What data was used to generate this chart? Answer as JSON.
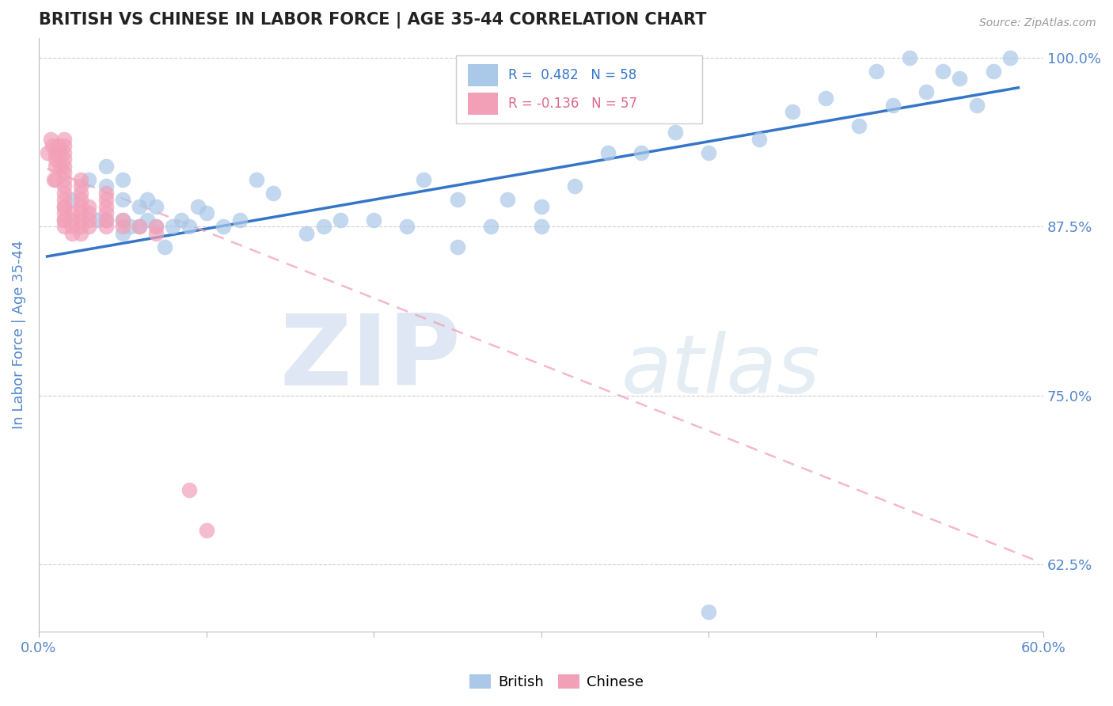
{
  "title": "BRITISH VS CHINESE IN LABOR FORCE | AGE 35-44 CORRELATION CHART",
  "source_text": "Source: ZipAtlas.com",
  "ylabel": "In Labor Force | Age 35-44",
  "xlim": [
    0.0,
    0.6
  ],
  "ylim": [
    0.575,
    1.015
  ],
  "xticks": [
    0.0,
    0.1,
    0.2,
    0.3,
    0.4,
    0.5,
    0.6
  ],
  "yticks": [
    0.625,
    0.75,
    0.875,
    1.0
  ],
  "yticklabels": [
    "62.5%",
    "75.0%",
    "87.5%",
    "100.0%"
  ],
  "british_R": 0.482,
  "british_N": 58,
  "chinese_R": -0.136,
  "chinese_N": 57,
  "british_color": "#aac8e8",
  "chinese_color": "#f2a0b8",
  "british_line_color": "#3575c8",
  "chinese_line_color": "#f2a0b8",
  "grid_color": "#d0d0d0",
  "axis_color": "#bbbbbb",
  "label_color": "#5588cc",
  "title_color": "#222222",
  "watermark": "ZIPatlas",
  "british_x": [
    0.02,
    0.03,
    0.035,
    0.04,
    0.04,
    0.04,
    0.05,
    0.05,
    0.05,
    0.05,
    0.055,
    0.06,
    0.06,
    0.065,
    0.065,
    0.07,
    0.07,
    0.075,
    0.08,
    0.085,
    0.09,
    0.095,
    0.1,
    0.11,
    0.12,
    0.13,
    0.14,
    0.16,
    0.17,
    0.18,
    0.2,
    0.22,
    0.23,
    0.25,
    0.25,
    0.27,
    0.28,
    0.3,
    0.3,
    0.32,
    0.34,
    0.36,
    0.38,
    0.4,
    0.43,
    0.45,
    0.47,
    0.49,
    0.5,
    0.51,
    0.52,
    0.53,
    0.54,
    0.55,
    0.56,
    0.57,
    0.58,
    0.4
  ],
  "british_y": [
    0.895,
    0.91,
    0.88,
    0.88,
    0.905,
    0.92,
    0.87,
    0.88,
    0.895,
    0.91,
    0.875,
    0.875,
    0.89,
    0.88,
    0.895,
    0.875,
    0.89,
    0.86,
    0.875,
    0.88,
    0.875,
    0.89,
    0.885,
    0.875,
    0.88,
    0.91,
    0.9,
    0.87,
    0.875,
    0.88,
    0.88,
    0.875,
    0.91,
    0.86,
    0.895,
    0.875,
    0.895,
    0.875,
    0.89,
    0.905,
    0.93,
    0.93,
    0.945,
    0.93,
    0.94,
    0.96,
    0.97,
    0.95,
    0.99,
    0.965,
    1.0,
    0.975,
    0.99,
    0.985,
    0.965,
    0.99,
    1.0,
    0.59
  ],
  "chinese_x": [
    0.005,
    0.007,
    0.008,
    0.009,
    0.01,
    0.01,
    0.01,
    0.01,
    0.012,
    0.013,
    0.013,
    0.015,
    0.015,
    0.015,
    0.015,
    0.015,
    0.015,
    0.015,
    0.015,
    0.015,
    0.015,
    0.015,
    0.015,
    0.015,
    0.015,
    0.015,
    0.015,
    0.02,
    0.02,
    0.02,
    0.02,
    0.025,
    0.025,
    0.025,
    0.025,
    0.025,
    0.025,
    0.025,
    0.025,
    0.025,
    0.03,
    0.03,
    0.03,
    0.03,
    0.04,
    0.04,
    0.04,
    0.04,
    0.04,
    0.04,
    0.05,
    0.05,
    0.06,
    0.07,
    0.07,
    0.09,
    0.1
  ],
  "chinese_y": [
    0.93,
    0.94,
    0.935,
    0.91,
    0.91,
    0.92,
    0.925,
    0.93,
    0.935,
    0.92,
    0.93,
    0.88,
    0.89,
    0.895,
    0.9,
    0.905,
    0.91,
    0.915,
    0.92,
    0.925,
    0.93,
    0.935,
    0.94,
    0.875,
    0.88,
    0.885,
    0.89,
    0.87,
    0.875,
    0.88,
    0.885,
    0.87,
    0.875,
    0.88,
    0.885,
    0.89,
    0.895,
    0.9,
    0.905,
    0.91,
    0.875,
    0.88,
    0.885,
    0.89,
    0.875,
    0.88,
    0.885,
    0.89,
    0.895,
    0.9,
    0.875,
    0.88,
    0.875,
    0.87,
    0.875,
    0.68,
    0.65
  ],
  "british_line_x": [
    0.005,
    0.585
  ],
  "british_line_y": [
    0.853,
    0.978
  ],
  "chinese_line_x": [
    0.005,
    0.595
  ],
  "chinese_line_y": [
    0.918,
    0.628
  ]
}
